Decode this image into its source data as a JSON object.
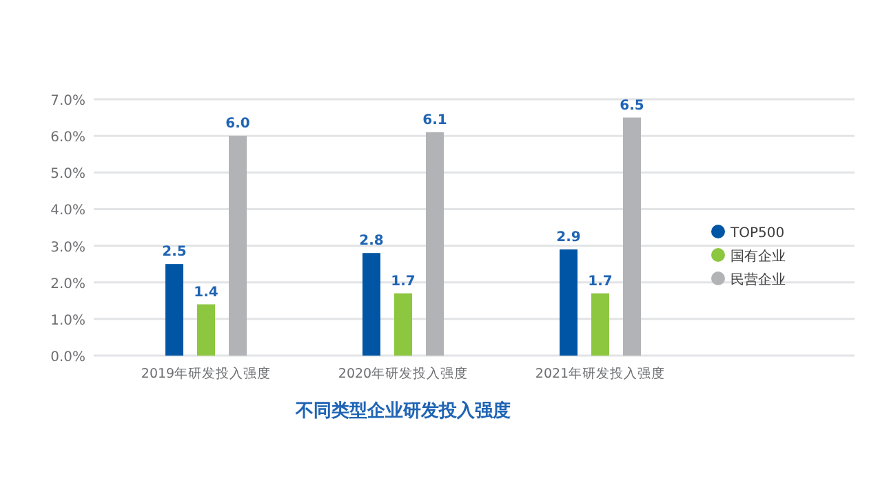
{
  "chart_data": {
    "type": "bar",
    "title": "不同类型企业研发投入强度",
    "categories": [
      "2019年研发投入强度",
      "2020年研发投入强度",
      "2021年研发投入强度"
    ],
    "series": [
      {
        "name": "TOP500",
        "color": "#0055a5",
        "values": [
          2.5,
          2.8,
          2.9
        ],
        "value_labels": [
          "2.5",
          "2.8",
          "2.9"
        ]
      },
      {
        "name": "国有企业",
        "color": "#8dc63f",
        "values": [
          1.4,
          1.7,
          1.7
        ],
        "value_labels": [
          "1.4",
          "1.7",
          "1.7"
        ]
      },
      {
        "name": "民营企业",
        "color": "#b1b3b6",
        "values": [
          6.0,
          6.1,
          6.5
        ],
        "value_labels": [
          "6.0",
          "6.1",
          "6.5"
        ]
      }
    ],
    "ylim": [
      0,
      7
    ],
    "yticks": [
      {
        "value": 0,
        "label": "0.0%"
      },
      {
        "value": 1,
        "label": "1.0%"
      },
      {
        "value": 2,
        "label": "2.0%"
      },
      {
        "value": 3,
        "label": "3.0%"
      },
      {
        "value": 4,
        "label": "4.0%"
      },
      {
        "value": 5,
        "label": "5.0%"
      },
      {
        "value": 6,
        "label": "6.0%"
      },
      {
        "value": 7,
        "label": "7.0%"
      }
    ],
    "grid": "y",
    "legend": "right"
  }
}
